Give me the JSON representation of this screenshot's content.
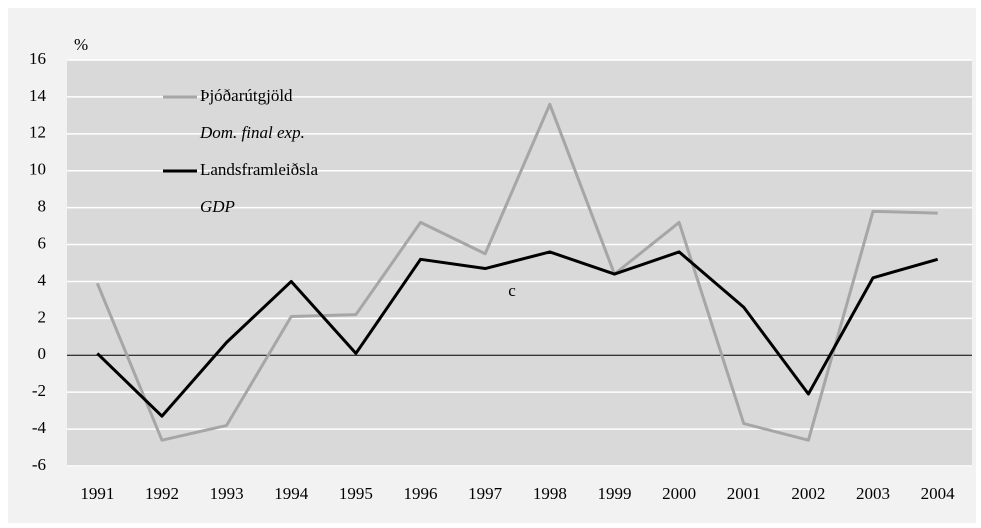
{
  "chart_data": {
    "type": "line",
    "y_label": "%",
    "annotation": "c",
    "categories": [
      "1991",
      "1992",
      "1993",
      "1994",
      "1995",
      "1996",
      "1997",
      "1998",
      "1999",
      "2000",
      "2001",
      "2002",
      "2003",
      "2004"
    ],
    "series": [
      {
        "name": "Þjóðarútgjöld",
        "name_en": "Dom. final exp.",
        "color": "#a6a6a6",
        "values": [
          3.9,
          -4.6,
          -3.8,
          2.1,
          2.2,
          7.2,
          5.5,
          13.6,
          4.4,
          7.2,
          -3.7,
          -4.6,
          7.8,
          7.7
        ]
      },
      {
        "name": "Landsframleiðsla",
        "name_en": "GDP",
        "color": "#000000",
        "values": [
          0.1,
          -3.3,
          0.7,
          4.0,
          0.1,
          5.2,
          4.7,
          5.6,
          4.4,
          5.6,
          2.6,
          -2.1,
          4.2,
          5.2
        ]
      }
    ],
    "ylim": [
      -6,
      16
    ],
    "yticks": [
      -6,
      -4,
      -2,
      0,
      2,
      4,
      6,
      8,
      10,
      12,
      14,
      16
    ],
    "grid": true,
    "legend": "top-left"
  }
}
